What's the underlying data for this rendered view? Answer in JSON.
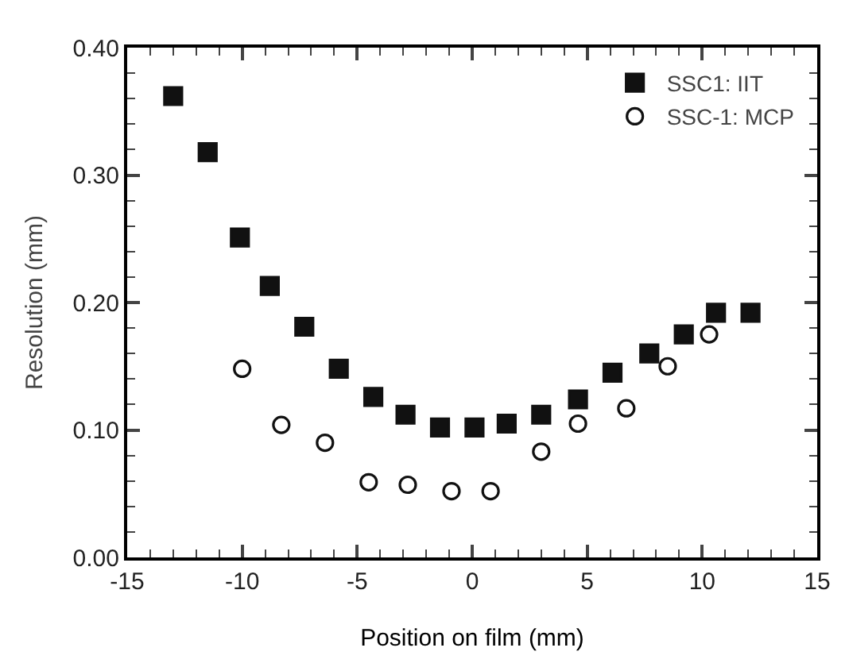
{
  "chart_data": {
    "type": "scatter",
    "xlabel": "Position on film (mm)",
    "ylabel": "Resolution (mm)",
    "xlim": [
      -15,
      15
    ],
    "xticks": [
      -15,
      -10,
      -5,
      0,
      5,
      10,
      15
    ],
    "ylim": [
      0,
      0.4
    ],
    "yticks": [
      {
        "value": 0,
        "label": "0.00"
      },
      {
        "value": 0.1,
        "label": "0.10"
      },
      {
        "value": 0.2,
        "label": "0.20"
      },
      {
        "value": 0.3,
        "label": "0.30"
      },
      {
        "value": 0.4,
        "label": "0.40"
      }
    ],
    "legend": "top right",
    "series": [
      {
        "name": "SSC1: IIT",
        "color": "#111111",
        "marker": "square",
        "x": [
          -13.0,
          -11.5,
          -10.1,
          -8.8,
          -7.3,
          -5.8,
          -4.3,
          -2.9,
          -1.4,
          0.1,
          1.5,
          3.0,
          4.6,
          6.1,
          7.7,
          9.2,
          10.6,
          12.1
        ],
        "values": [
          0.362,
          0.318,
          0.251,
          0.213,
          0.181,
          0.148,
          0.126,
          0.112,
          0.102,
          0.102,
          0.105,
          0.112,
          0.124,
          0.145,
          0.16,
          0.175,
          0.192,
          0.192
        ]
      },
      {
        "name": "SSC-1: MCP",
        "color": "#111111",
        "marker": "circle-open",
        "x": [
          -10.0,
          -8.3,
          -6.4,
          -4.5,
          -2.8,
          -0.9,
          0.8,
          3.0,
          4.6,
          6.7,
          8.5,
          10.3
        ],
        "values": [
          0.148,
          0.104,
          0.09,
          0.059,
          0.057,
          0.052,
          0.052,
          0.083,
          0.105,
          0.117,
          0.15,
          0.175
        ]
      }
    ]
  }
}
